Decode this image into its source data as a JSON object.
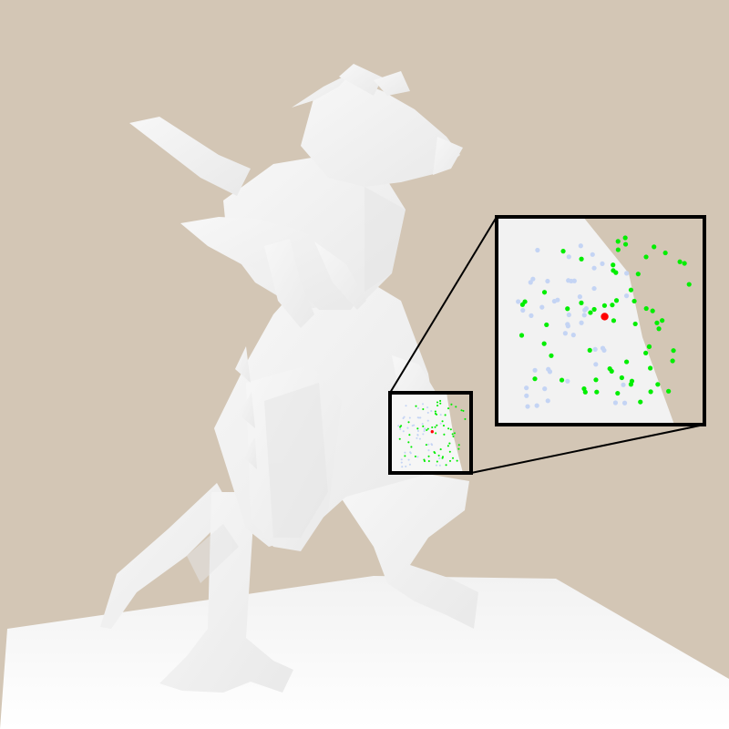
{
  "scene": {
    "background_color": "#d3c6b5",
    "floor_color": "#f1f1f1",
    "model_color": "#f4f4f4",
    "model_shade_color": "#e4e4e4",
    "outline_color": "#000000"
  },
  "sample_points": {
    "highlight_color": "#ff0000",
    "accepted_color": "#00ee00",
    "rejected_color": "#c4d4f4",
    "accepted_count": 62,
    "rejected_count": 48
  },
  "icons": [
    "zoom-inset",
    "highlight-point"
  ]
}
